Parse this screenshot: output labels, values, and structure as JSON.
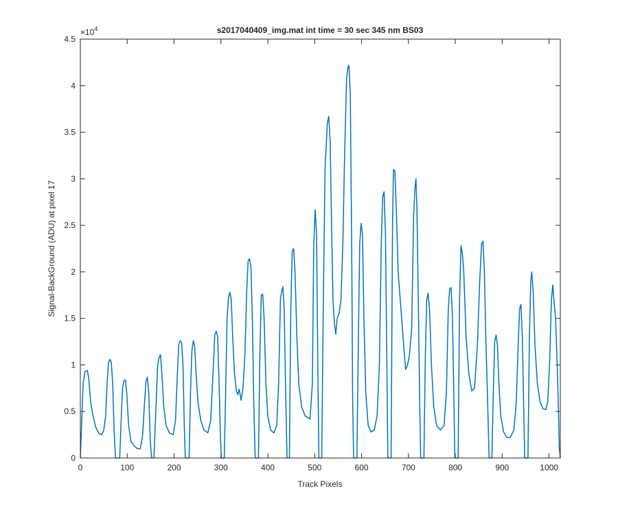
{
  "chart_data": {
    "type": "line",
    "title": "s2017040409_img.mat int time = 30 sec  345 nm BS03",
    "x_label": "Track Pixels",
    "y_label": "Signal-BackGround (ADU) at pixel 17",
    "y_exponent_label": {
      "base": "×10",
      "exponent": "4"
    },
    "xlim": [
      0,
      1024
    ],
    "xticks": [
      0,
      100,
      200,
      300,
      400,
      500,
      600,
      700,
      800,
      900,
      1000
    ],
    "ylim": [
      0,
      4.5
    ],
    "yticks": [
      0,
      0.5,
      1,
      1.5,
      2,
      2.5,
      3,
      3.5,
      4,
      4.5
    ],
    "grid": false,
    "series": [
      {
        "color": "#0072bd",
        "x": [
          0,
          3,
          6,
          10,
          15,
          18,
          22,
          27,
          33,
          40,
          46,
          50,
          54,
          57,
          60,
          63,
          66,
          69,
          72,
          75,
          84,
          87,
          90,
          93,
          96,
          99,
          103,
          108,
          115,
          122,
          128,
          133,
          137,
          140,
          143,
          146,
          149,
          152,
          157,
          161,
          165,
          168,
          171,
          174,
          178,
          183,
          190,
          198,
          203,
          207,
          210,
          213,
          216,
          219,
          222,
          224,
          232,
          235,
          238,
          241,
          244,
          247,
          251,
          257,
          264,
          272,
          278,
          283,
          287,
          290,
          293,
          296,
          299,
          301,
          307,
          310,
          313,
          316,
          319,
          322,
          325,
          329,
          333,
          336,
          339,
          343,
          347,
          351,
          355,
          358,
          361,
          364,
          367,
          370,
          373,
          380,
          383,
          386,
          389,
          392,
          396,
          400,
          406,
          413,
          419,
          423,
          427,
          430,
          432,
          435,
          438,
          441,
          446,
          449,
          452,
          455,
          458,
          462,
          466,
          472,
          480,
          490,
          495,
          498,
          501,
          504,
          507,
          509,
          515,
          518,
          522,
          527,
          530,
          533,
          536,
          539,
          542,
          545,
          548,
          552,
          556,
          560,
          564,
          568,
          571,
          573,
          576,
          579,
          581,
          583,
          590,
          593,
          596,
          599,
          602,
          605,
          609,
          614,
          620,
          627,
          633,
          638,
          642,
          645,
          648,
          651,
          654,
          656,
          663,
          666,
          668,
          671,
          674,
          678,
          684,
          690,
          694,
          698,
          702,
          707,
          711,
          714,
          716,
          718,
          721,
          724,
          726,
          733,
          736,
          739,
          742,
          745,
          749,
          754,
          760,
          768,
          776,
          781,
          785,
          788,
          791,
          794,
          797,
          799,
          806,
          809,
          812,
          815,
          818,
          823,
          829,
          835,
          841,
          847,
          852,
          856,
          859,
          862,
          865,
          869,
          872,
          878,
          881,
          884,
          887,
          890,
          893,
          897,
          903,
          910,
          917,
          925,
          930,
          934,
          937,
          940,
          943,
          946,
          948,
          955,
          958,
          961,
          963,
          966,
          970,
          975,
          981,
          987,
          993,
          997,
          1001,
          1005,
          1008,
          1011,
          1014,
          1018,
          1022,
          1024
        ],
        "values": [
          0,
          0.4,
          0.8,
          0.93,
          0.94,
          0.85,
          0.6,
          0.45,
          0.33,
          0.26,
          0.25,
          0.3,
          0.45,
          0.8,
          1.02,
          1.06,
          1.03,
          0.8,
          0.3,
          0,
          0,
          0.4,
          0.75,
          0.83,
          0.84,
          0.7,
          0.35,
          0.18,
          0.13,
          0.1,
          0.1,
          0.25,
          0.6,
          0.82,
          0.87,
          0.7,
          0.2,
          0,
          0,
          0.5,
          1.0,
          1.08,
          1.11,
          0.9,
          0.55,
          0.35,
          0.27,
          0.25,
          0.4,
          0.9,
          1.22,
          1.26,
          1.24,
          1.0,
          0.3,
          0,
          0,
          0.7,
          1.15,
          1.26,
          1.2,
          0.9,
          0.6,
          0.4,
          0.3,
          0.27,
          0.4,
          0.9,
          1.33,
          1.36,
          1.3,
          0.8,
          0.2,
          0,
          0,
          0.7,
          1.5,
          1.72,
          1.78,
          1.7,
          1.3,
          0.9,
          0.72,
          0.68,
          0.74,
          0.62,
          0.75,
          1.1,
          1.8,
          2.12,
          2.14,
          2.05,
          1.5,
          0.6,
          0,
          0,
          1.1,
          1.75,
          1.76,
          1.5,
          0.8,
          0.45,
          0.3,
          0.27,
          0.35,
          0.8,
          1.72,
          1.8,
          1.84,
          1.6,
          0.7,
          0,
          0,
          1.6,
          2.22,
          2.25,
          2.0,
          1.3,
          0.8,
          0.55,
          0.45,
          0.42,
          0.8,
          2.3,
          2.67,
          2.4,
          0.8,
          0,
          0,
          1.5,
          3.1,
          3.6,
          3.67,
          3.4,
          2.5,
          1.7,
          1.45,
          1.33,
          1.5,
          1.55,
          1.7,
          2.3,
          3.3,
          4.08,
          4.2,
          4.22,
          3.9,
          2.2,
          0.6,
          0,
          0,
          1.2,
          2.3,
          2.52,
          2.4,
          1.5,
          0.7,
          0.35,
          0.28,
          0.3,
          0.45,
          1.0,
          2.3,
          2.8,
          2.86,
          2.4,
          1.0,
          0,
          0,
          2.5,
          3.1,
          3.08,
          2.7,
          2.0,
          1.6,
          1.2,
          0.95,
          1.0,
          1.1,
          1.4,
          2.6,
          2.9,
          3.0,
          2.7,
          1.7,
          0.6,
          0,
          0,
          1.1,
          1.7,
          1.77,
          1.6,
          1.0,
          0.55,
          0.35,
          0.3,
          0.35,
          0.7,
          1.6,
          1.82,
          1.83,
          1.5,
          0.6,
          0,
          0,
          1.7,
          2.28,
          2.2,
          2.0,
          1.3,
          0.9,
          0.72,
          0.75,
          1.2,
          1.9,
          2.3,
          2.33,
          2.0,
          1.3,
          0.6,
          0,
          0,
          0.7,
          1.25,
          1.32,
          1.2,
          0.8,
          0.45,
          0.28,
          0.22,
          0.22,
          0.3,
          0.6,
          1.2,
          1.6,
          1.65,
          1.3,
          0.5,
          0,
          0,
          1.3,
          1.9,
          2.0,
          1.8,
          1.2,
          0.8,
          0.6,
          0.53,
          0.52,
          0.6,
          1.0,
          1.7,
          1.86,
          1.65,
          1.5,
          0.9,
          0.1,
          0
        ]
      }
    ]
  }
}
